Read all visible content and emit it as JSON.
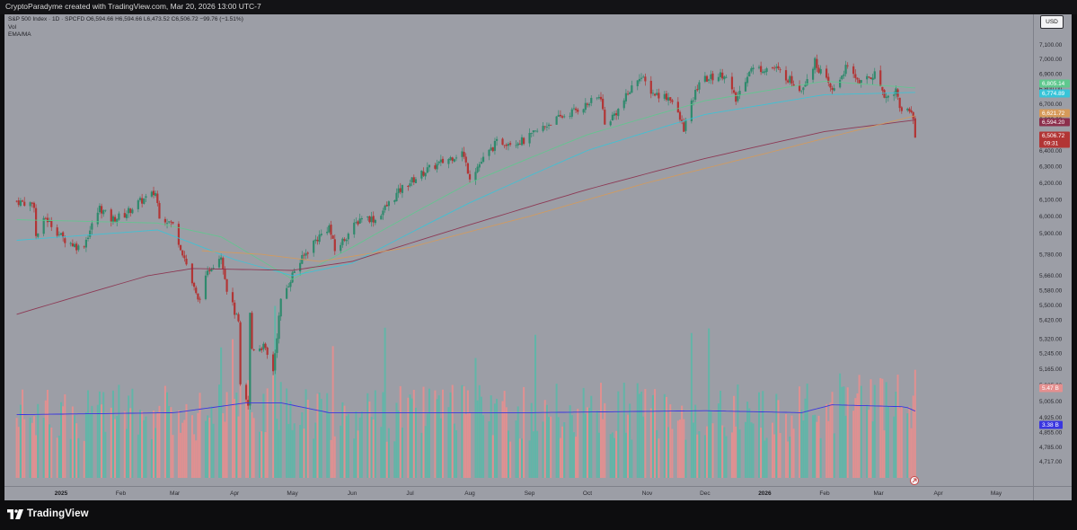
{
  "header": {
    "attribution": "CryptoParadyme created with TradingView.com, Mar 20, 2026 13:00 UTC-7"
  },
  "legend": {
    "symbol_line": "S&P 500 Index · 1D · SPCFD  O6,594.66  H6,594.66  L6,473.52  C6,506.72  −99.76 (−1.51%)",
    "volume_label": "Vol",
    "indicator_label": "EMA/MA"
  },
  "currency_button": "USD",
  "footer": {
    "brand": "TradingView"
  },
  "colors": {
    "panel_background": "#9c9ea6",
    "candle_up": "#2f8a6d",
    "candle_down": "#b23535",
    "volume_up": "#5fb6a8",
    "volume_down": "#e58f8f",
    "ema_green": "#5fc88e",
    "ema_cyan": "#38c4d8",
    "ma_red": "#8c2f4c",
    "ma_orange": "#d69a5a",
    "volume_ma": "#3a36e0"
  },
  "chart_data": {
    "type": "candlestick",
    "title": "S&P 500 Index · 1D · SPCFD",
    "ylim": [
      4650,
      7250
    ],
    "y_scale": "log",
    "y_ticks": [
      "7,100.00",
      "7,000.00",
      "6,900.00",
      "6,800.00",
      "6,700.00",
      "6,600.00",
      "6,500.00",
      "6,400.00",
      "6,300.00",
      "6,200.00",
      "6,100.00",
      "6,000.00",
      "5,900.00",
      "5,780.00",
      "5,660.00",
      "5,580.00",
      "5,500.00",
      "5,420.00",
      "5,320.00",
      "5,245.00",
      "5,165.00",
      "5,085.00",
      "5,005.00",
      "4,925.00",
      "4,855.00",
      "4,785.00",
      "4,717.00"
    ],
    "x_ticks": [
      {
        "label": "2025",
        "bold": true,
        "date": "2025-01-01"
      },
      {
        "label": "Feb",
        "date": "2025-02-01"
      },
      {
        "label": "Mar",
        "date": "2025-03-01"
      },
      {
        "label": "Apr",
        "date": "2025-04-01"
      },
      {
        "label": "May",
        "date": "2025-05-01"
      },
      {
        "label": "Jun",
        "date": "2025-06-01"
      },
      {
        "label": "Jul",
        "date": "2025-07-01"
      },
      {
        "label": "Aug",
        "date": "2025-08-01"
      },
      {
        "label": "Sep",
        "date": "2025-09-01"
      },
      {
        "label": "Oct",
        "date": "2025-10-01"
      },
      {
        "label": "Nov",
        "date": "2025-11-01"
      },
      {
        "label": "Dec",
        "date": "2025-12-01"
      },
      {
        "label": "2026",
        "bold": true,
        "date": "2026-01-01"
      },
      {
        "label": "Feb",
        "date": "2026-02-01"
      },
      {
        "label": "Mar",
        "date": "2026-03-01"
      },
      {
        "label": "Apr",
        "date": "2026-04-01"
      },
      {
        "label": "May",
        "date": "2026-05-01"
      }
    ],
    "price_path": [
      [
        "2024-12-09",
        6090
      ],
      [
        "2024-12-18",
        6070
      ],
      [
        "2024-12-19",
        5880
      ],
      [
        "2024-12-24",
        5990
      ],
      [
        "2025-01-02",
        5870
      ],
      [
        "2025-01-10",
        5820
      ],
      [
        "2025-01-13",
        5840
      ],
      [
        "2025-01-21",
        6050
      ],
      [
        "2025-01-27",
        5980
      ],
      [
        "2025-02-03",
        6010
      ],
      [
        "2025-02-10",
        6080
      ],
      [
        "2025-02-19",
        6140
      ],
      [
        "2025-02-21",
        6010
      ],
      [
        "2025-02-28",
        5950
      ],
      [
        "2025-03-06",
        5760
      ],
      [
        "2025-03-10",
        5620
      ],
      [
        "2025-03-13",
        5520
      ],
      [
        "2025-03-19",
        5700
      ],
      [
        "2025-03-25",
        5780
      ],
      [
        "2025-03-28",
        5590
      ],
      [
        "2025-04-03",
        5400
      ],
      [
        "2025-04-04",
        5070
      ],
      [
        "2025-04-08",
        4980
      ],
      [
        "2025-04-09",
        5450
      ],
      [
        "2025-04-10",
        5270
      ],
      [
        "2025-04-16",
        5280
      ],
      [
        "2025-04-21",
        5160
      ],
      [
        "2025-04-25",
        5520
      ],
      [
        "2025-05-02",
        5690
      ],
      [
        "2025-05-12",
        5850
      ],
      [
        "2025-05-20",
        5940
      ],
      [
        "2025-05-23",
        5800
      ],
      [
        "2025-06-06",
        6000
      ],
      [
        "2025-06-13",
        5980
      ],
      [
        "2025-06-27",
        6170
      ],
      [
        "2025-07-10",
        6280
      ],
      [
        "2025-07-28",
        6390
      ],
      [
        "2025-08-01",
        6240
      ],
      [
        "2025-08-15",
        6450
      ],
      [
        "2025-08-29",
        6460
      ],
      [
        "2025-09-12",
        6580
      ],
      [
        "2025-09-30",
        6690
      ],
      [
        "2025-10-08",
        6750
      ],
      [
        "2025-10-10",
        6560
      ],
      [
        "2025-10-17",
        6660
      ],
      [
        "2025-10-28",
        6890
      ],
      [
        "2025-11-04",
        6770
      ],
      [
        "2025-11-13",
        6740
      ],
      [
        "2025-11-20",
        6540
      ],
      [
        "2025-11-28",
        6850
      ],
      [
        "2025-12-11",
        6900
      ],
      [
        "2025-12-17",
        6720
      ],
      [
        "2025-12-24",
        6930
      ],
      [
        "2026-01-06",
        6940
      ],
      [
        "2026-01-20",
        6800
      ],
      [
        "2026-01-27",
        6980
      ],
      [
        "2026-02-05",
        6780
      ],
      [
        "2026-02-12",
        6940
      ],
      [
        "2026-02-20",
        6840
      ],
      [
        "2026-02-27",
        6900
      ],
      [
        "2026-03-05",
        6740
      ],
      [
        "2026-03-10",
        6790
      ],
      [
        "2026-03-13",
        6640
      ],
      [
        "2026-03-17",
        6670
      ],
      [
        "2026-03-19",
        6600
      ],
      [
        "2026-03-20",
        6506.72
      ]
    ],
    "series": [
      {
        "name": "EMA/MA (green)",
        "color_key": "ema_green",
        "points": [
          [
            "2024-12-09",
            5980
          ],
          [
            "2025-02-20",
            5960
          ],
          [
            "2025-03-25",
            5880
          ],
          [
            "2025-05-01",
            5640
          ],
          [
            "2025-06-01",
            5820
          ],
          [
            "2025-08-01",
            6200
          ],
          [
            "2025-10-01",
            6500
          ],
          [
            "2025-12-01",
            6720
          ],
          [
            "2026-02-01",
            6850
          ],
          [
            "2026-03-20",
            6805
          ]
        ]
      },
      {
        "name": "EMA/MA (cyan)",
        "color_key": "ema_cyan",
        "points": [
          [
            "2024-12-09",
            5860
          ],
          [
            "2025-02-20",
            5920
          ],
          [
            "2025-04-01",
            5750
          ],
          [
            "2025-05-01",
            5660
          ],
          [
            "2025-06-01",
            5730
          ],
          [
            "2025-08-01",
            6080
          ],
          [
            "2025-10-01",
            6400
          ],
          [
            "2025-12-01",
            6630
          ],
          [
            "2026-02-01",
            6760
          ],
          [
            "2026-03-20",
            6775
          ]
        ]
      },
      {
        "name": "EMA/MA (dark red)",
        "color_key": "ma_red",
        "points": [
          [
            "2024-12-09",
            5450
          ],
          [
            "2025-02-15",
            5660
          ],
          [
            "2025-03-10",
            5700
          ],
          [
            "2025-05-01",
            5690
          ],
          [
            "2025-06-01",
            5740
          ],
          [
            "2025-08-01",
            5950
          ],
          [
            "2025-10-01",
            6160
          ],
          [
            "2025-12-01",
            6350
          ],
          [
            "2026-02-01",
            6520
          ],
          [
            "2026-03-20",
            6594
          ]
        ]
      },
      {
        "name": "EMA/MA (orange)",
        "color_key": "ma_orange",
        "points": [
          [
            "2025-03-15",
            5800
          ],
          [
            "2025-04-15",
            5780
          ],
          [
            "2025-05-15",
            5740
          ],
          [
            "2025-07-01",
            5820
          ],
          [
            "2025-09-01",
            6000
          ],
          [
            "2025-11-01",
            6200
          ],
          [
            "2026-01-01",
            6380
          ],
          [
            "2026-02-15",
            6520
          ],
          [
            "2026-03-20",
            6622
          ]
        ]
      }
    ],
    "price_badges": [
      {
        "value": "6,805.14",
        "color_key": "ema_green"
      },
      {
        "value": "6,774.89",
        "color_key": "ema_cyan"
      },
      {
        "value": "6,621.72",
        "color_key": "ma_orange"
      },
      {
        "value": "6,594.20",
        "color_key": "ma_red"
      },
      {
        "value": "6,506.72",
        "color_key": "candle_down",
        "countdown": "09:31"
      }
    ],
    "volume": {
      "badges": [
        {
          "value": "5.47 B",
          "color_key": "volume_down"
        },
        {
          "value": "3.38 B",
          "color_key": "volume_ma"
        }
      ],
      "unit": "B",
      "ma_points": [
        [
          "2024-12-09",
          3.2
        ],
        [
          "2025-03-01",
          3.3
        ],
        [
          "2025-04-07",
          3.8
        ],
        [
          "2025-04-25",
          3.8
        ],
        [
          "2025-05-20",
          3.3
        ],
        [
          "2025-09-01",
          3.3
        ],
        [
          "2025-12-01",
          3.4
        ],
        [
          "2026-01-20",
          3.3
        ],
        [
          "2026-02-05",
          3.7
        ],
        [
          "2026-03-15",
          3.6
        ],
        [
          "2026-03-20",
          3.38
        ]
      ],
      "last_value": 5.47
    }
  }
}
